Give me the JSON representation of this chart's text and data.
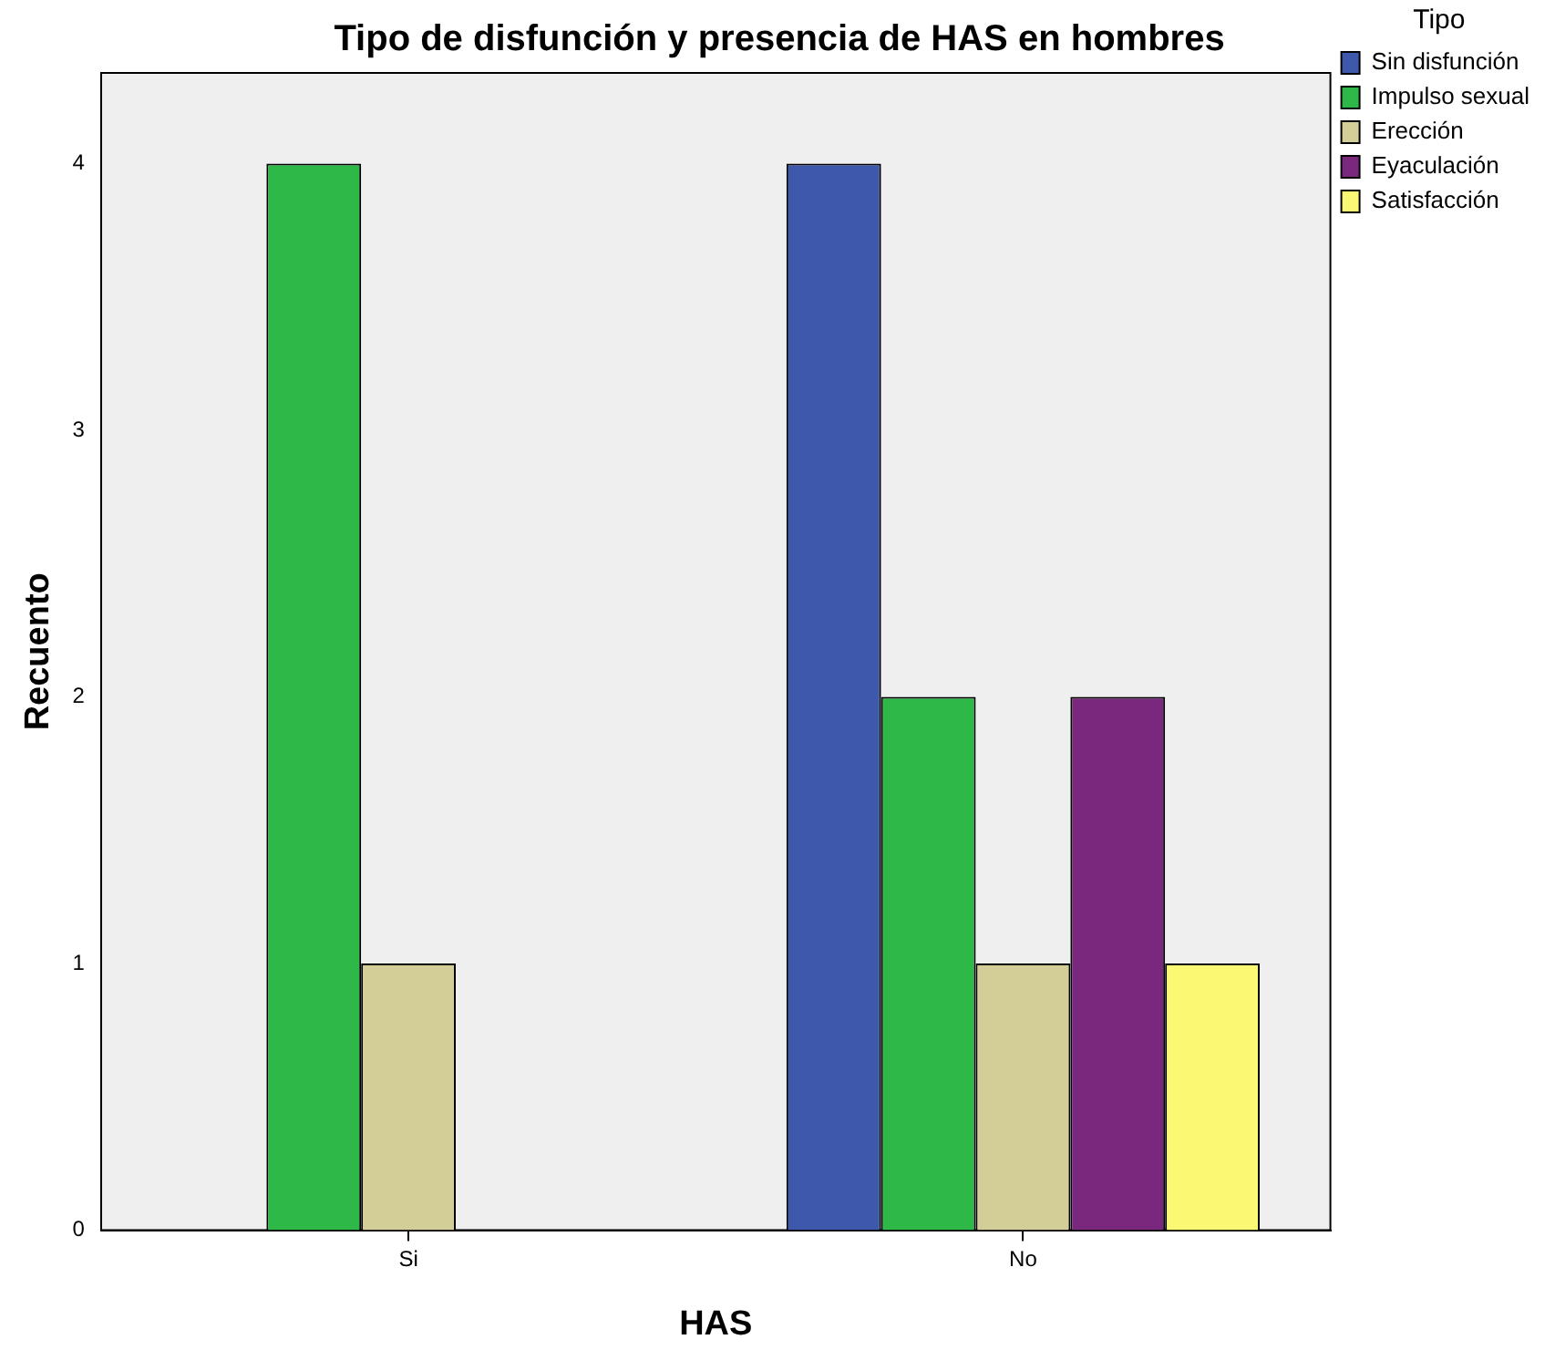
{
  "chart_data": {
    "type": "bar",
    "title": "Tipo de disfunción y presencia de HAS en hombres",
    "xlabel": "HAS",
    "ylabel": "Recuento",
    "legend_title": "Tipo",
    "categories": [
      "Si",
      "No"
    ],
    "series": [
      {
        "name": "Sin disfunción",
        "color": "#3e58ac",
        "values": [
          0,
          4
        ]
      },
      {
        "name": "Impulso sexual",
        "color": "#2eb848",
        "values": [
          4,
          2
        ]
      },
      {
        "name": "Erección",
        "color": "#d3ce97",
        "values": [
          1,
          1
        ]
      },
      {
        "name": "Eyaculación",
        "color": "#79287e",
        "values": [
          0,
          2
        ]
      },
      {
        "name": "Satisfacción",
        "color": "#fbf873",
        "values": [
          0,
          1
        ]
      }
    ],
    "ylim": [
      0,
      4.34
    ],
    "yticks": [
      0,
      1,
      2,
      3,
      4
    ],
    "grid": false,
    "legend": "top right"
  }
}
